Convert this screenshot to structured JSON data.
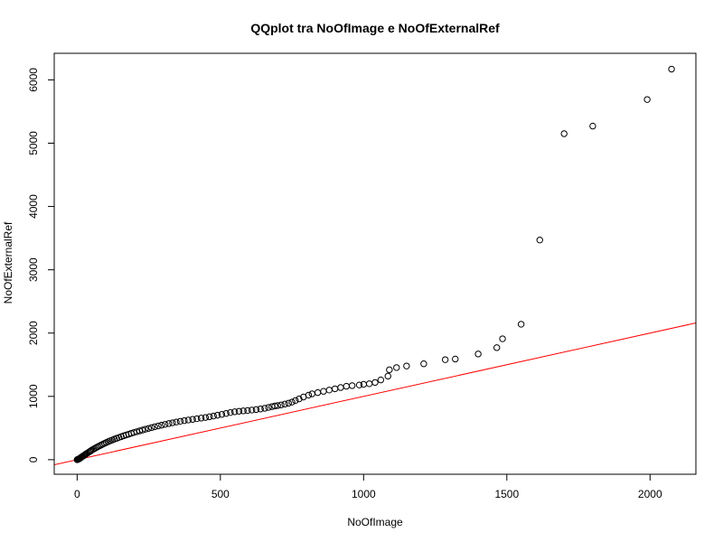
{
  "chart_data": {
    "type": "scatter",
    "title": "QQplot tra NoOfImage e NoOfExternalRef",
    "xlabel": "NoOfImage",
    "ylabel": "NoOfExternalRef",
    "xlim": [
      -80,
      2160
    ],
    "ylim": [
      -230,
      6420
    ],
    "x_ticks": [
      0,
      500,
      1000,
      1500,
      2000
    ],
    "y_ticks": [
      0,
      1000,
      2000,
      3000,
      4000,
      5000,
      6000
    ],
    "grid": false,
    "legend": "none",
    "colors": {
      "points": "#000000",
      "reference_line": "#ff0000",
      "axes": "#000000"
    },
    "reference_line": {
      "intercept": 0,
      "slope": 1
    },
    "series": [
      {
        "points": [
          [
            0,
            0
          ],
          [
            2,
            3
          ],
          [
            3,
            6
          ],
          [
            5,
            10
          ],
          [
            7,
            15
          ],
          [
            9,
            20
          ],
          [
            11,
            26
          ],
          [
            13,
            33
          ],
          [
            15,
            40
          ],
          [
            17,
            48
          ],
          [
            20,
            56
          ],
          [
            23,
            65
          ],
          [
            26,
            74
          ],
          [
            29,
            84
          ],
          [
            32,
            94
          ],
          [
            36,
            105
          ],
          [
            40,
            117
          ],
          [
            44,
            129
          ],
          [
            48,
            141
          ],
          [
            52,
            153
          ],
          [
            57,
            166
          ],
          [
            62,
            179
          ],
          [
            67,
            192
          ],
          [
            72,
            205
          ],
          [
            78,
            218
          ],
          [
            84,
            232
          ],
          [
            90,
            246
          ],
          [
            96,
            259
          ],
          [
            102,
            272
          ],
          [
            109,
            286
          ],
          [
            116,
            299
          ],
          [
            123,
            312
          ],
          [
            130,
            325
          ],
          [
            138,
            338
          ],
          [
            146,
            351
          ],
          [
            154,
            364
          ],
          [
            162,
            377
          ],
          [
            171,
            390
          ],
          [
            180,
            403
          ],
          [
            189,
            416
          ],
          [
            198,
            429
          ],
          [
            208,
            442
          ],
          [
            218,
            455
          ],
          [
            228,
            468
          ],
          [
            238,
            481
          ],
          [
            249,
            494
          ],
          [
            260,
            507
          ],
          [
            271,
            520
          ],
          [
            283,
            533
          ],
          [
            295,
            546
          ],
          [
            307,
            558
          ],
          [
            320,
            571
          ],
          [
            333,
            583
          ],
          [
            346,
            595
          ],
          [
            360,
            606
          ],
          [
            374,
            617
          ],
          [
            388,
            627
          ],
          [
            403,
            637
          ],
          [
            418,
            647
          ],
          [
            433,
            657
          ],
          [
            448,
            667
          ],
          [
            462,
            678
          ],
          [
            476,
            690
          ],
          [
            490,
            703
          ],
          [
            505,
            716
          ],
          [
            520,
            730
          ],
          [
            535,
            745
          ],
          [
            550,
            757
          ],
          [
            565,
            765
          ],
          [
            580,
            771
          ],
          [
            595,
            777
          ],
          [
            610,
            784
          ],
          [
            625,
            792
          ],
          [
            640,
            801
          ],
          [
            655,
            812
          ],
          [
            668,
            825
          ],
          [
            680,
            838
          ],
          [
            690,
            848
          ],
          [
            700,
            855
          ],
          [
            712,
            865
          ],
          [
            725,
            878
          ],
          [
            738,
            892
          ],
          [
            750,
            910
          ],
          [
            762,
            935
          ],
          [
            775,
            960
          ],
          [
            790,
            990
          ],
          [
            808,
            1020
          ],
          [
            820,
            1040
          ],
          [
            840,
            1060
          ],
          [
            860,
            1080
          ],
          [
            880,
            1100
          ],
          [
            900,
            1120
          ],
          [
            920,
            1140
          ],
          [
            940,
            1160
          ],
          [
            960,
            1170
          ],
          [
            985,
            1180
          ],
          [
            1000,
            1190
          ],
          [
            1020,
            1200
          ],
          [
            1040,
            1220
          ],
          [
            1060,
            1260
          ],
          [
            1085,
            1320
          ],
          [
            1090,
            1420
          ],
          [
            1115,
            1455
          ],
          [
            1150,
            1480
          ],
          [
            1210,
            1515
          ],
          [
            1285,
            1580
          ],
          [
            1320,
            1590
          ],
          [
            1400,
            1670
          ],
          [
            1465,
            1770
          ],
          [
            1485,
            1910
          ],
          [
            1550,
            2140
          ],
          [
            1615,
            3470
          ],
          [
            1700,
            5150
          ],
          [
            1800,
            5270
          ],
          [
            1990,
            5690
          ],
          [
            2075,
            6170
          ]
        ]
      }
    ]
  }
}
